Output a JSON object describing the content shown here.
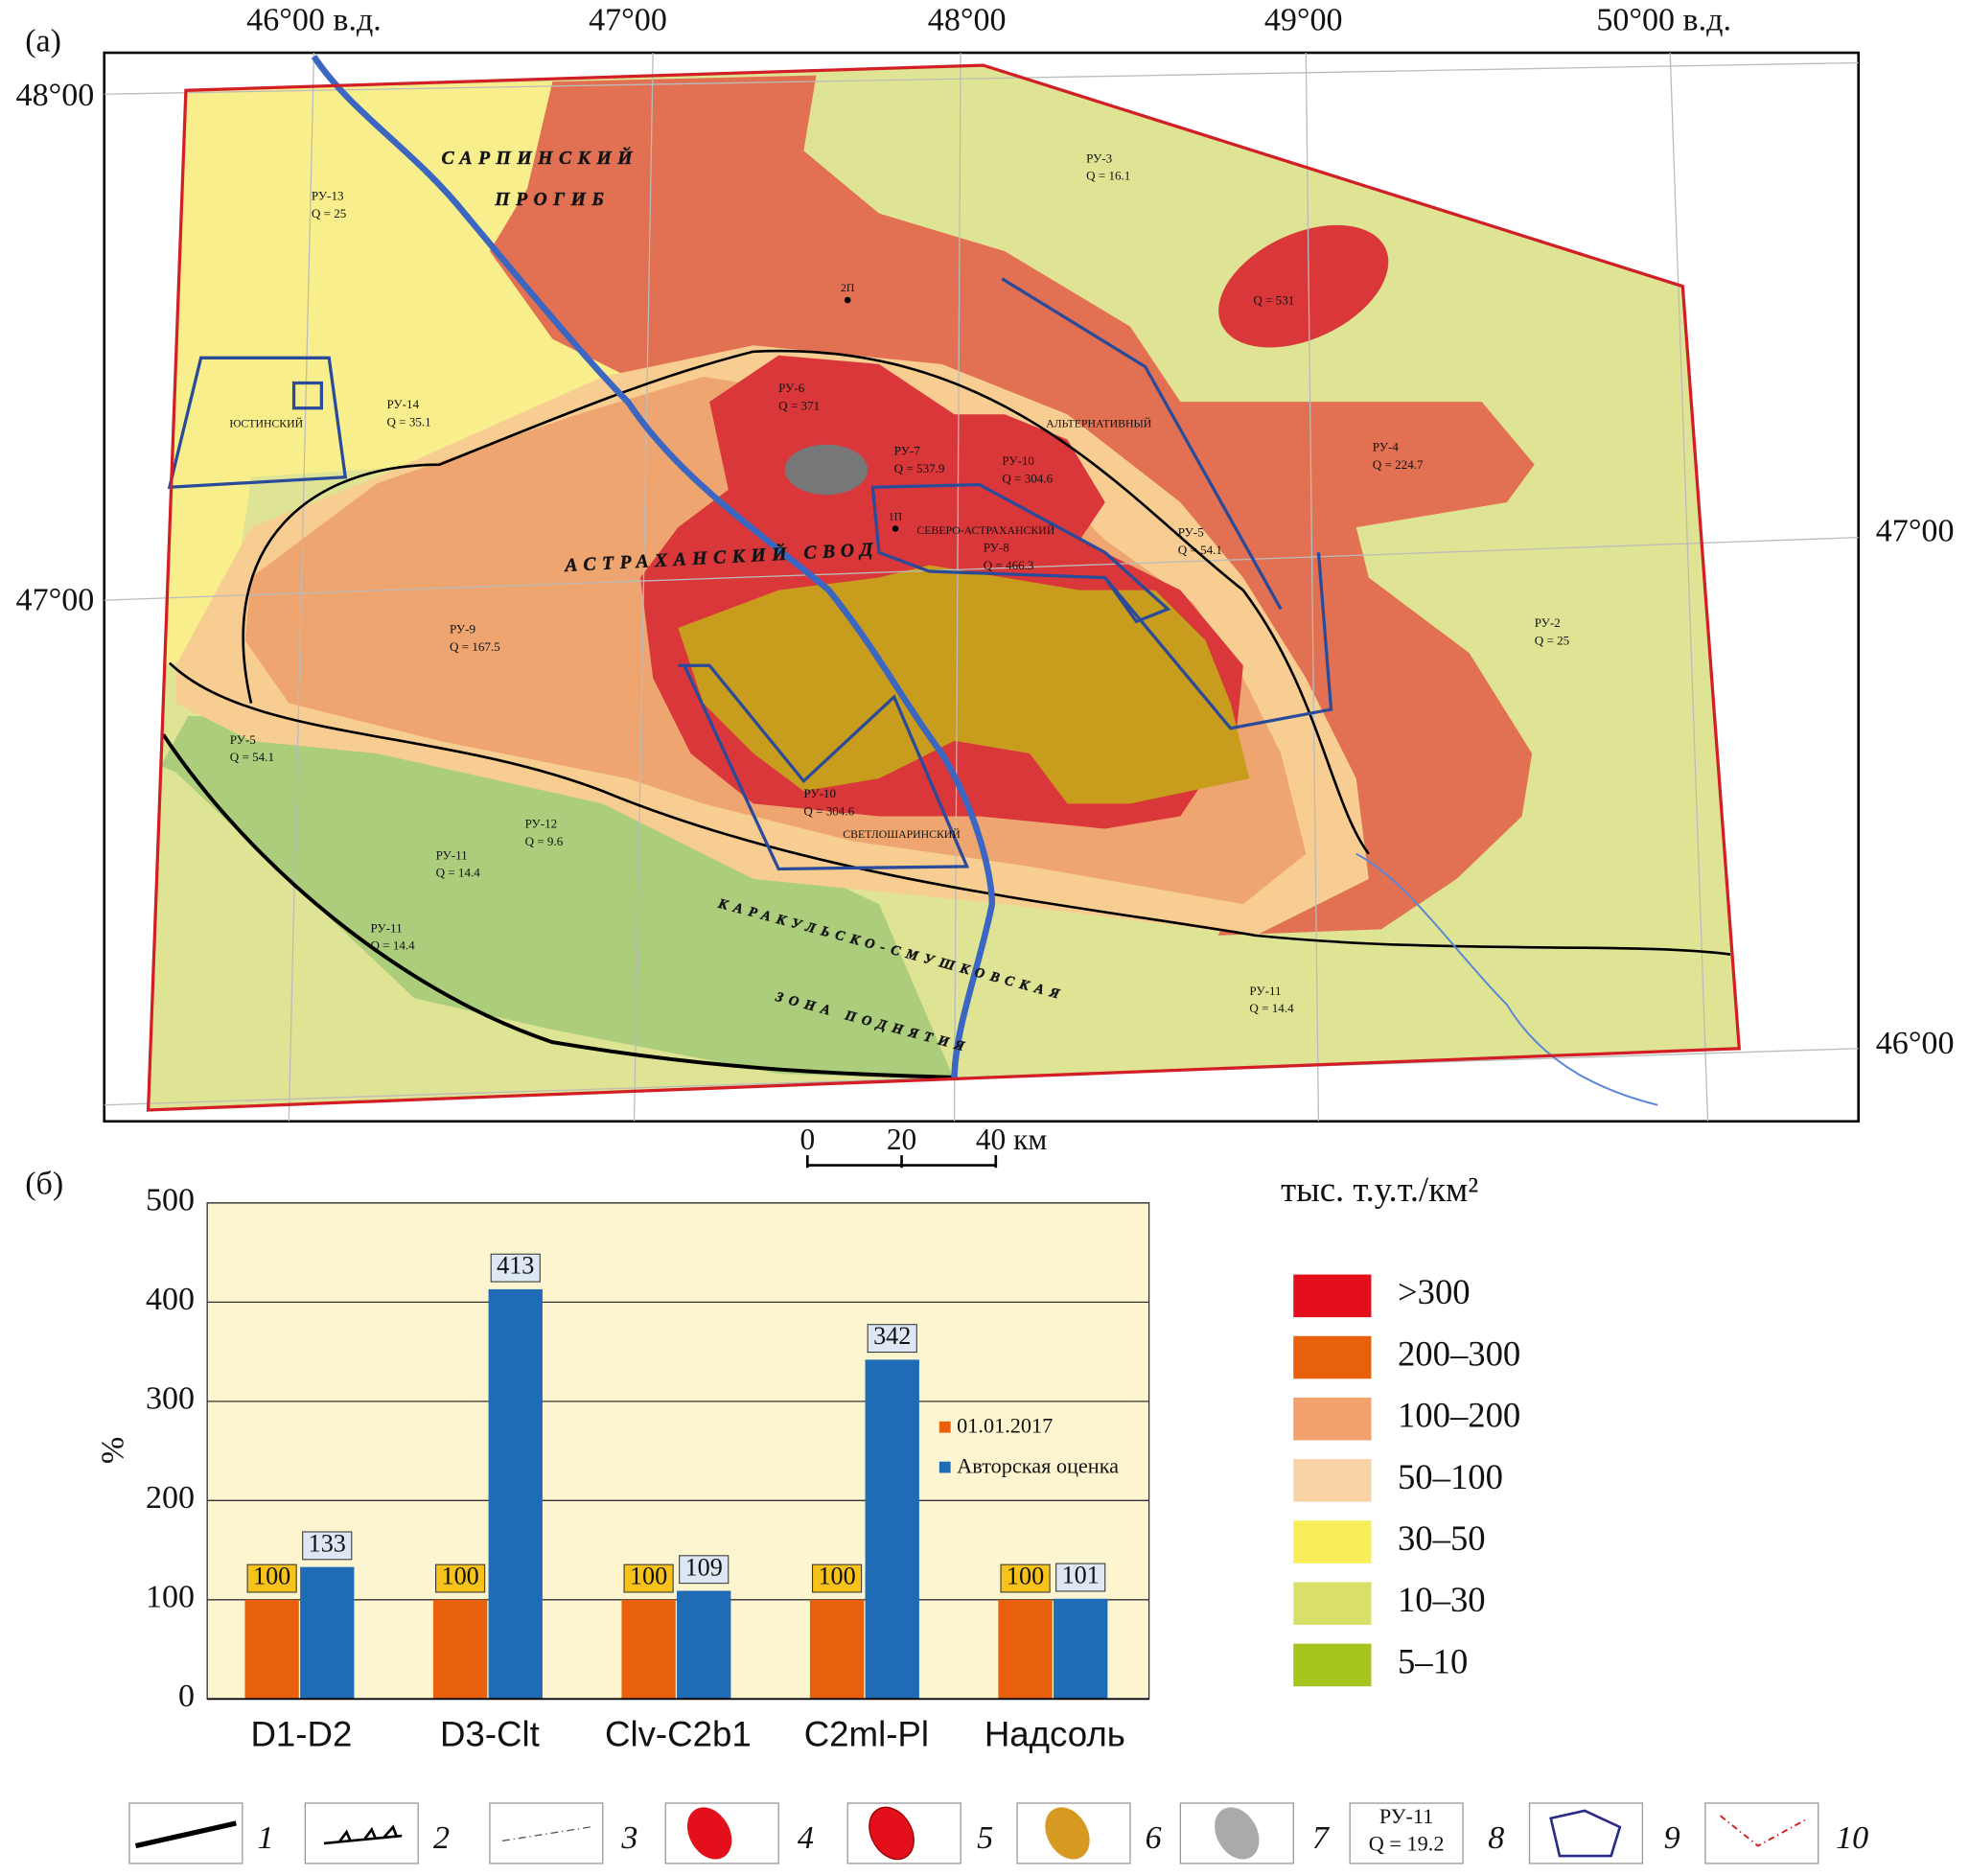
{
  "panels": [
    "(а)",
    "(б)"
  ],
  "map": {
    "lon_labels": [
      "46°00 в.д.",
      "47°00",
      "48°00",
      "49°00",
      "50°00 в.д."
    ],
    "lat_labels_left": [
      "48°00",
      "47°00"
    ],
    "lat_labels_right": [
      "47°00",
      "46°00"
    ],
    "structures": [
      "САРПИНСКИЙ",
      "ПРОГИБ",
      "АСТРАХАНСКИЙ СВОД",
      "КАРАКУЛЬСКО-СМУШКОВСКАЯ",
      "ЗОНА ПОДНЯТИЯ"
    ],
    "license_areas": [
      "ЮСТИНСКИЙ",
      "АЛЬТЕРНАТИВНЫЙ",
      "СЕВЕРО-АСТРАХАНСКИЙ",
      "СВЕТЛОШАРИНСКИЙ"
    ],
    "wells": [
      "2П",
      "1П"
    ],
    "regions": [
      {
        "name": "РУ-13",
        "q": "Q = 25"
      },
      {
        "name": "РУ-3",
        "q": "Q = 16.1"
      },
      {
        "q": "Q = 531"
      },
      {
        "name": "РУ-14",
        "q": "Q = 35.1"
      },
      {
        "name": "РУ-6",
        "q": "Q = 371"
      },
      {
        "name": "РУ-7",
        "q": "Q = 537.9"
      },
      {
        "name": "РУ-10",
        "q": "Q = 304.6"
      },
      {
        "name": "РУ-4",
        "q": "Q = 224.7"
      },
      {
        "name": "РУ-5",
        "q": "Q = 54.1"
      },
      {
        "name": "РУ-8",
        "q": "Q = 466.3"
      },
      {
        "name": "РУ-9",
        "q": "Q = 167.5"
      },
      {
        "name": "РУ-2",
        "q": "Q = 25"
      },
      {
        "name": "РУ-5",
        "q": "Q = 54.1"
      },
      {
        "name": "РУ-10",
        "q": "Q = 304.6"
      },
      {
        "name": "РУ-12",
        "q": "Q = 9.6"
      },
      {
        "name": "РУ-11",
        "q": "Q = 14.4"
      },
      {
        "name": "РУ-11",
        "q": "Q = 14.4"
      },
      {
        "name": "РУ-11",
        "q": "Q = 14.4"
      }
    ],
    "scale": [
      "0",
      "20",
      "40 км"
    ]
  },
  "chart_data": {
    "type": "bar",
    "ylabel": "%",
    "categories": [
      "D1-D2",
      "D3-Clt",
      "Clv-C2b1",
      "C2ml-Pl",
      "Надсоль"
    ],
    "series": [
      {
        "name": "01.01.2017",
        "color": "#e8600c",
        "values": [
          100,
          100,
          100,
          100,
          100
        ]
      },
      {
        "name": "Авторская оценка",
        "color": "#1f6bb5",
        "values": [
          133,
          413,
          109,
          342,
          101
        ]
      }
    ],
    "ylim": [
      0,
      500
    ],
    "yticks": [
      0,
      100,
      200,
      300,
      400,
      500
    ],
    "grid": true
  },
  "color_legend": {
    "title": "тыс. т.у.т./км²",
    "items": [
      {
        "label": ">300",
        "color": "#e3101c"
      },
      {
        "label": "200–300",
        "color": "#e8600c"
      },
      {
        "label": "100–200",
        "color": "#f2a06c"
      },
      {
        "label": "50–100",
        "color": "#f9d2a6"
      },
      {
        "label": "30–50",
        "color": "#f8ee5a"
      },
      {
        "label": "10–30",
        "color": "#d9e06a"
      },
      {
        "label": "5–10",
        "color": "#a5c41e"
      }
    ]
  },
  "symbol_legend": {
    "numbers": [
      "1",
      "2",
      "3",
      "4",
      "5",
      "6",
      "7",
      "8",
      "9",
      "10"
    ],
    "sample": [
      "РУ-11",
      "Q = 19.2"
    ]
  }
}
